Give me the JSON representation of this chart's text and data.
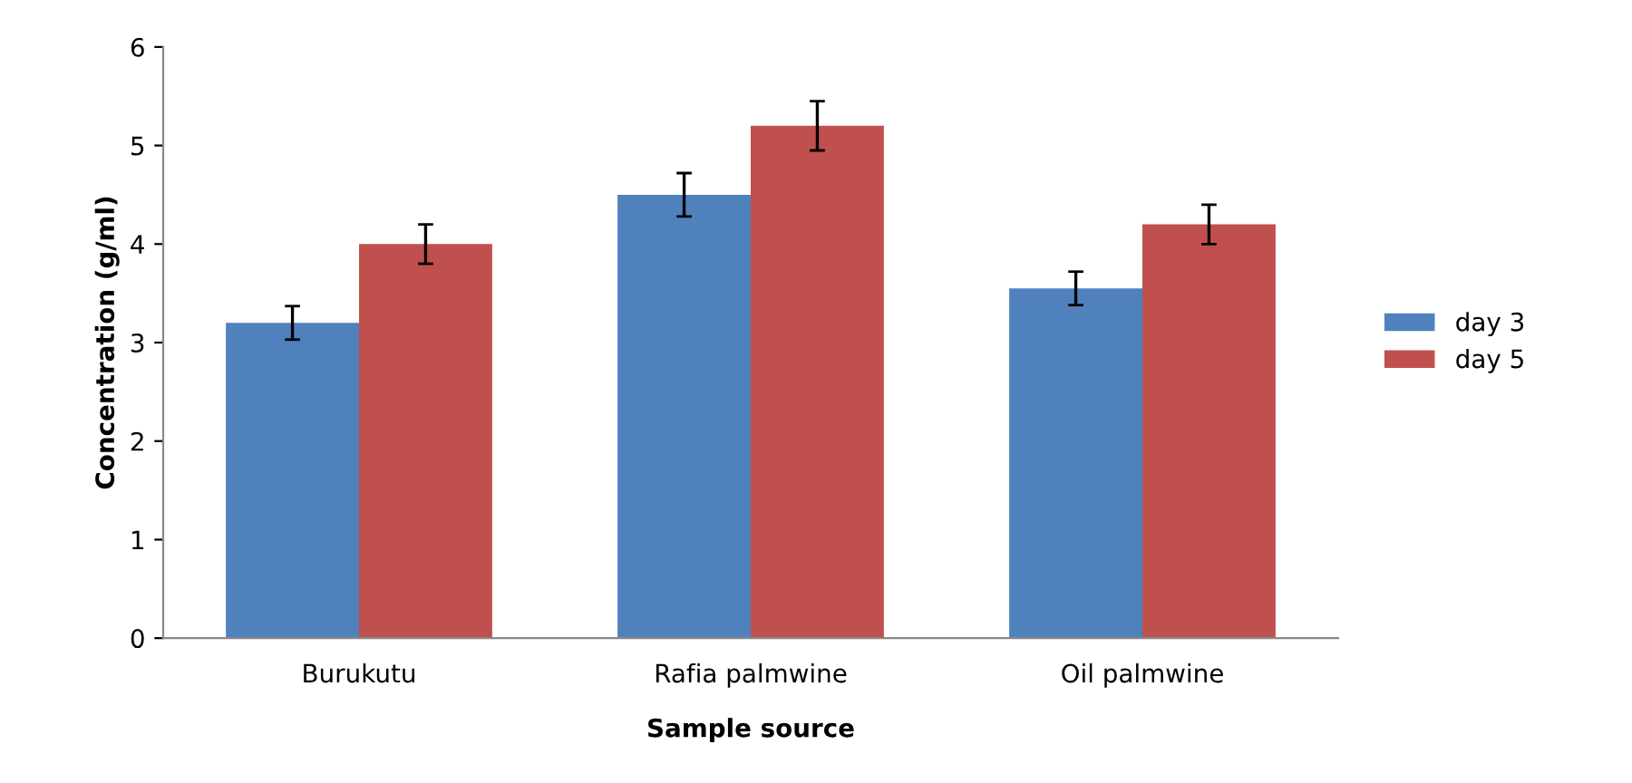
{
  "chart_data": {
    "type": "bar",
    "xlabel": "Sample source",
    "ylabel": "Concentration (g/ml)",
    "categories": [
      "Burukutu",
      "Rafia palmwine",
      "Oil palmwine"
    ],
    "series": [
      {
        "name": "day 3",
        "color": "#4f81bd",
        "values": [
          3.2,
          4.5,
          3.55
        ],
        "errors": [
          0.17,
          0.22,
          0.17
        ]
      },
      {
        "name": "day 5",
        "color": "#c0504d",
        "values": [
          4.0,
          5.2,
          4.2
        ],
        "errors": [
          0.2,
          0.25,
          0.2
        ]
      }
    ],
    "ylim": [
      0,
      6
    ],
    "yticks": [
      0,
      1,
      2,
      3,
      4,
      5,
      6
    ],
    "grid": false,
    "legend": "right"
  }
}
